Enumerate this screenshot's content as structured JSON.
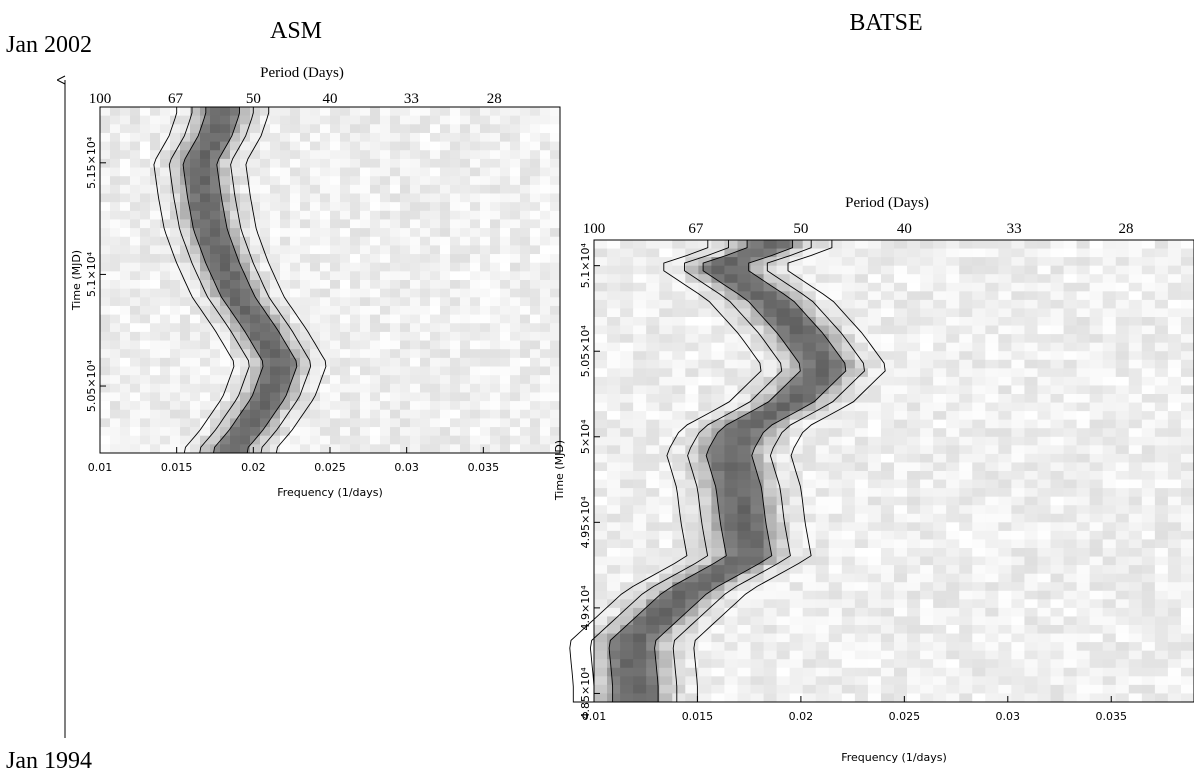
{
  "timeline": {
    "top_label": "Jan 2002",
    "bottom_label": "Jan 1994"
  },
  "chart_data": [
    {
      "type": "heatmap",
      "title": "ASM",
      "top_axis_label": "Period (Days)",
      "period_ticks": [
        "100",
        "67",
        "50",
        "40",
        "33",
        "28"
      ],
      "period_tick_values": [
        100,
        67,
        50,
        40,
        33,
        28
      ],
      "xlabel": "Frequency (1/days)",
      "ylabel": "Time (MJD)",
      "xlim": [
        0.01,
        0.04
      ],
      "ylim": [
        50200,
        51750
      ],
      "x_ticks": [
        "0.01",
        "0.015",
        "0.02",
        "0.025",
        "0.03",
        "0.035"
      ],
      "x_tick_values": [
        0.01,
        0.015,
        0.02,
        0.025,
        0.03,
        0.035
      ],
      "y_ticks": [
        "5.05×10⁴",
        "5.1×10⁴",
        "5.15×10⁴"
      ],
      "y_tick_values": [
        50500,
        51000,
        51500
      ],
      "ridge": [
        {
          "t": 50220,
          "f": 0.0185
        },
        {
          "t": 50300,
          "f": 0.0195
        },
        {
          "t": 50450,
          "f": 0.021
        },
        {
          "t": 50600,
          "f": 0.0218
        },
        {
          "t": 50750,
          "f": 0.0205
        },
        {
          "t": 50900,
          "f": 0.019
        },
        {
          "t": 51050,
          "f": 0.018
        },
        {
          "t": 51200,
          "f": 0.0172
        },
        {
          "t": 51350,
          "f": 0.0168
        },
        {
          "t": 51500,
          "f": 0.0165
        },
        {
          "t": 51620,
          "f": 0.0175
        },
        {
          "t": 51720,
          "f": 0.018
        }
      ]
    },
    {
      "type": "heatmap",
      "title": "BATSE",
      "top_axis_label": "Period (Days)",
      "period_ticks": [
        "100",
        "67",
        "50",
        "40",
        "33",
        "28"
      ],
      "period_tick_values": [
        100,
        67,
        50,
        40,
        33,
        28
      ],
      "xlabel": "Frequency (1/days)",
      "ylabel": "Time (MJD)",
      "xlim": [
        0.01,
        0.039
      ],
      "ylim": [
        48450,
        51150
      ],
      "x_ticks": [
        "0.01",
        "0.015",
        "0.02",
        "0.025",
        "0.03",
        "0.035"
      ],
      "x_tick_values": [
        0.01,
        0.015,
        0.02,
        0.025,
        0.03,
        0.035
      ],
      "y_ticks": [
        "4.85×10⁴",
        "4.9×10⁴",
        "4.95×10⁴",
        "5×10⁴",
        "5.05×10⁴",
        "5.1×10⁴"
      ],
      "y_tick_values": [
        48500,
        49000,
        49500,
        50000,
        50500,
        51000
      ],
      "ridge": [
        {
          "t": 48550,
          "f": 0.012
        },
        {
          "t": 48800,
          "f": 0.0118
        },
        {
          "t": 49100,
          "f": 0.0145
        },
        {
          "t": 49300,
          "f": 0.0175
        },
        {
          "t": 49500,
          "f": 0.0172
        },
        {
          "t": 49700,
          "f": 0.017
        },
        {
          "t": 49900,
          "f": 0.0165
        },
        {
          "t": 50050,
          "f": 0.0172
        },
        {
          "t": 50200,
          "f": 0.0195
        },
        {
          "t": 50400,
          "f": 0.0212
        },
        {
          "t": 50600,
          "f": 0.02
        },
        {
          "t": 50800,
          "f": 0.0185
        },
        {
          "t": 51000,
          "f": 0.016
        },
        {
          "t": 51100,
          "f": 0.0185
        }
      ]
    }
  ]
}
